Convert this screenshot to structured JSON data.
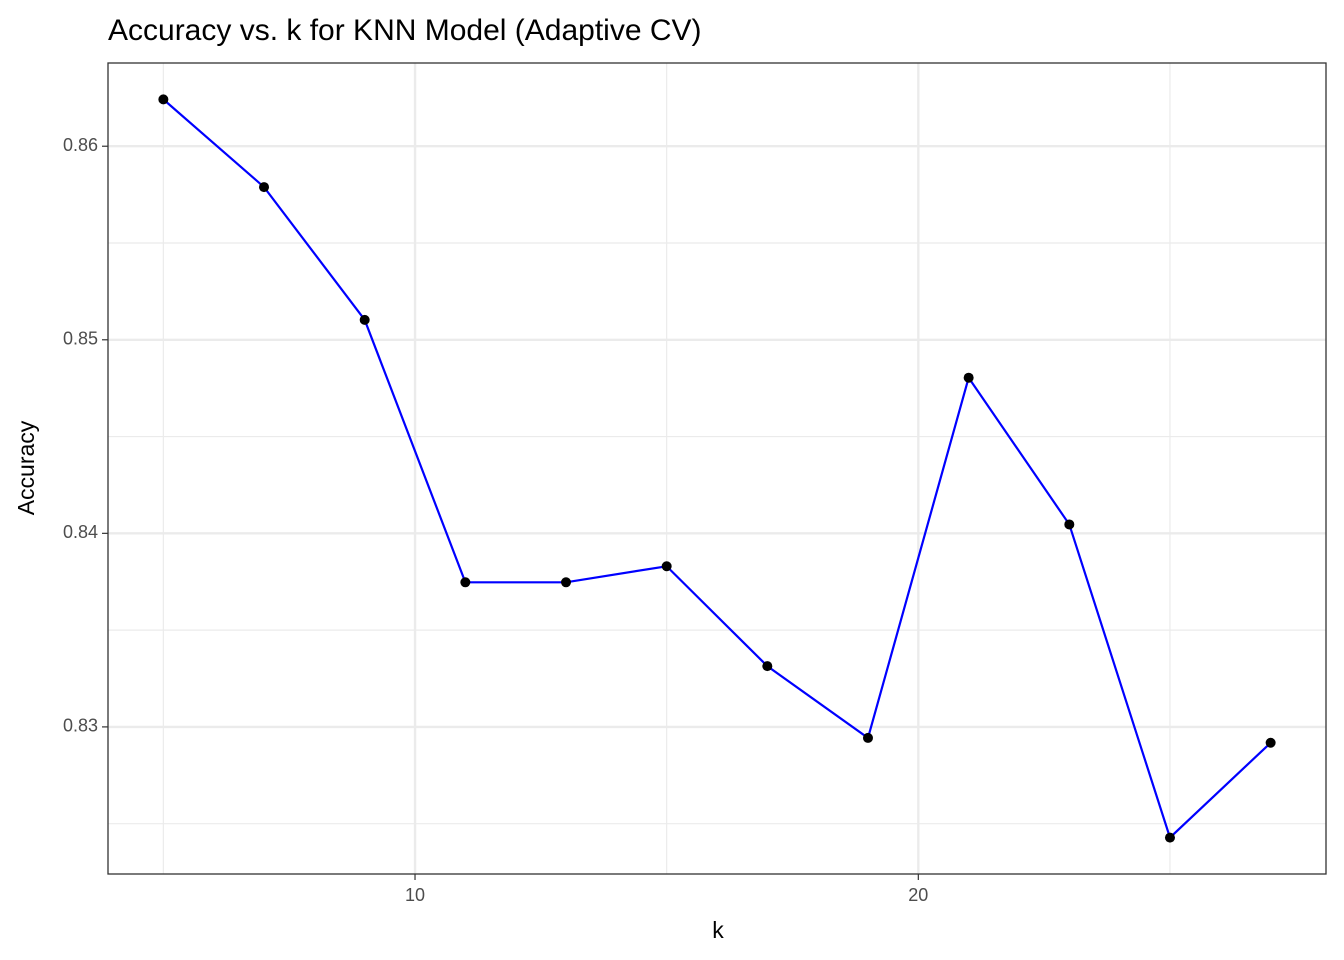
{
  "chart_data": {
    "type": "line",
    "title": "Accuracy vs. k for KNN Model (Adaptive CV)",
    "x_label": "k",
    "y_label": "Accuracy",
    "x": [
      5,
      7,
      9,
      11,
      13,
      15,
      17,
      19,
      21,
      23,
      25,
      27
    ],
    "series": [
      {
        "name": "Accuracy",
        "color": "#0000ff",
        "point_color": "#000000",
        "values": [
          0.86242,
          0.85789,
          0.85103,
          0.83747,
          0.83747,
          0.8383,
          0.83314,
          0.82943,
          0.84804,
          0.84046,
          0.82428,
          0.82918
        ]
      }
    ],
    "xlim": [
      3.9,
      28.1
    ],
    "ylim": [
      0.8224,
      0.8643
    ],
    "xticks": [
      10,
      20
    ],
    "yticks": [
      0.83,
      0.84,
      0.85,
      0.86
    ],
    "x_minor_ticks": [
      5,
      15,
      25
    ],
    "y_minor_ticks": [
      0.825,
      0.835,
      0.845,
      0.855
    ],
    "grid": true
  }
}
